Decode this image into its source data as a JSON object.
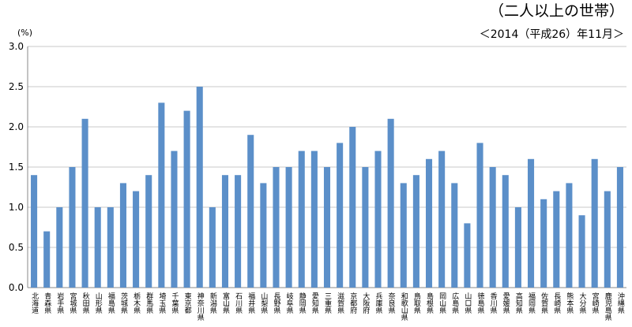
{
  "chart_data": {
    "type": "bar",
    "title": "（二人以上の世帯）",
    "subtitle": "＜2014（平成26）年11月＞",
    "y_label": "(%)",
    "categories": [
      "北海道",
      "青森県",
      "岩手県",
      "宮城県",
      "秋田県",
      "山形県",
      "福島県",
      "茨城県",
      "栃木県",
      "群馬県",
      "埼玉県",
      "千葉県",
      "東京都",
      "神奈川県",
      "新潟県",
      "富山県",
      "石川県",
      "福井県",
      "山梨県",
      "長野県",
      "岐阜県",
      "静岡県",
      "愛知県",
      "三重県",
      "滋賀県",
      "京都府",
      "大阪府",
      "兵庫県",
      "奈良県",
      "和歌山県",
      "鳥取県",
      "島根県",
      "岡山県",
      "広島県",
      "山口県",
      "徳島県",
      "香川県",
      "愛媛県",
      "高知県",
      "福岡県",
      "佐賀県",
      "長崎県",
      "熊本県",
      "大分県",
      "宮崎県",
      "鹿児島県",
      "沖縄県"
    ],
    "values": [
      1.4,
      0.7,
      1.0,
      1.5,
      2.1,
      1.0,
      1.0,
      1.3,
      1.2,
      1.4,
      2.3,
      1.7,
      2.2,
      2.5,
      1.0,
      1.4,
      1.4,
      1.9,
      1.3,
      1.5,
      1.5,
      1.7,
      1.7,
      1.5,
      1.8,
      2.0,
      1.5,
      1.7,
      2.1,
      1.3,
      1.4,
      1.6,
      1.7,
      1.3,
      0.8,
      1.8,
      1.5,
      1.4,
      1.0,
      1.6,
      1.1,
      1.2,
      1.3,
      0.9,
      1.6,
      1.2,
      1.5
    ],
    "color": "#5b8fc9",
    "ylim": [
      0,
      3
    ],
    "yticks": [
      {
        "value": 0,
        "label": "0.0"
      },
      0.5,
      {
        "value": 1,
        "label": "1.0"
      },
      1.5,
      {
        "value": 2,
        "label": "2.0"
      },
      2.5,
      {
        "value": 3,
        "label": "3.0"
      }
    ],
    "grid": true
  }
}
